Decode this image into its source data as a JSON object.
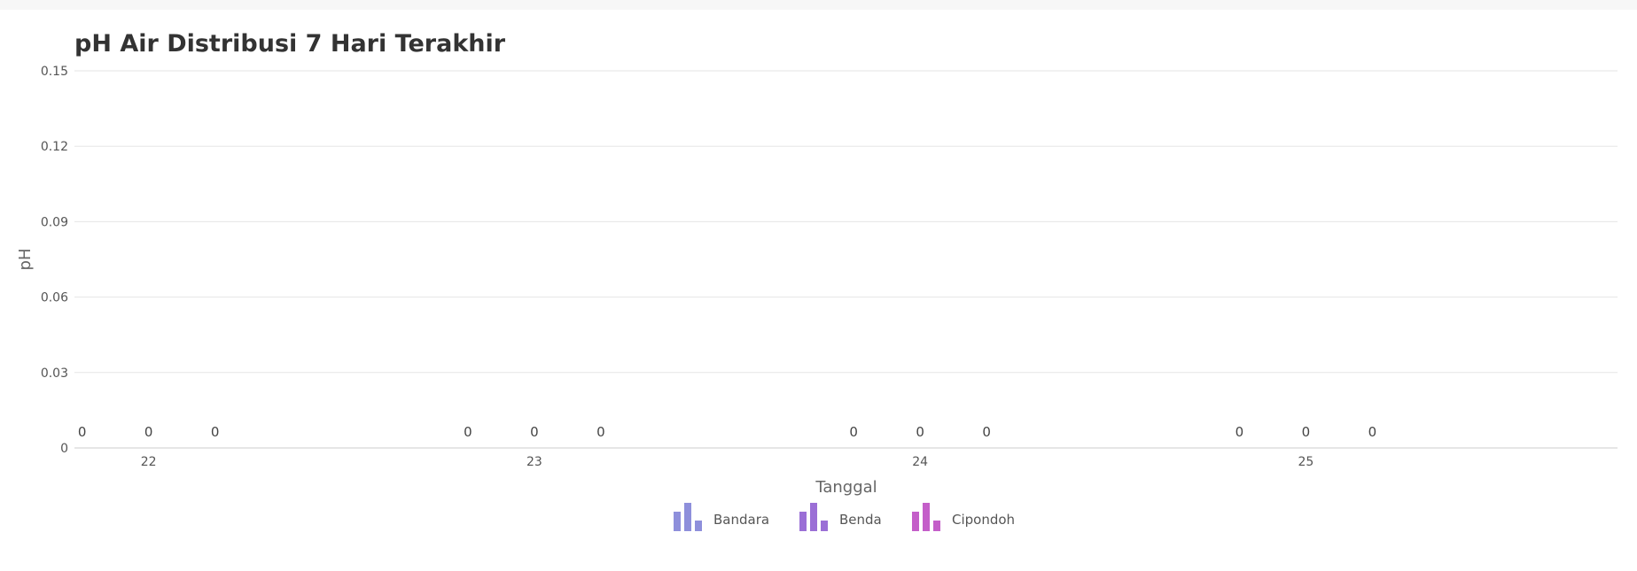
{
  "chart_data": {
    "type": "bar",
    "title": "pH Air Distribusi 7 Hari Terakhir",
    "xlabel": "Tanggal",
    "ylabel": "pH",
    "categories": [
      "22",
      "23",
      "24",
      "25"
    ],
    "ylim": [
      0,
      0.15
    ],
    "yticks": [
      "0",
      "0.03",
      "0.06",
      "0.09",
      "0.12",
      "0.15"
    ],
    "grid": true,
    "legend_position": "bottom-center",
    "series": [
      {
        "name": "Bandara",
        "values": [
          0,
          0,
          0,
          0
        ],
        "labels": [
          "0",
          "0",
          "0",
          "0"
        ],
        "color": "#8e8fdb"
      },
      {
        "name": "Benda",
        "values": [
          0,
          0,
          0,
          0
        ],
        "labels": [
          "0",
          "0",
          "0",
          "0"
        ],
        "color": "#9b6fd6"
      },
      {
        "name": "Cipondoh",
        "values": [
          0,
          0,
          0,
          0
        ],
        "labels": [
          "0",
          "0",
          "0",
          "0"
        ],
        "color": "#c45ec9"
      }
    ]
  }
}
